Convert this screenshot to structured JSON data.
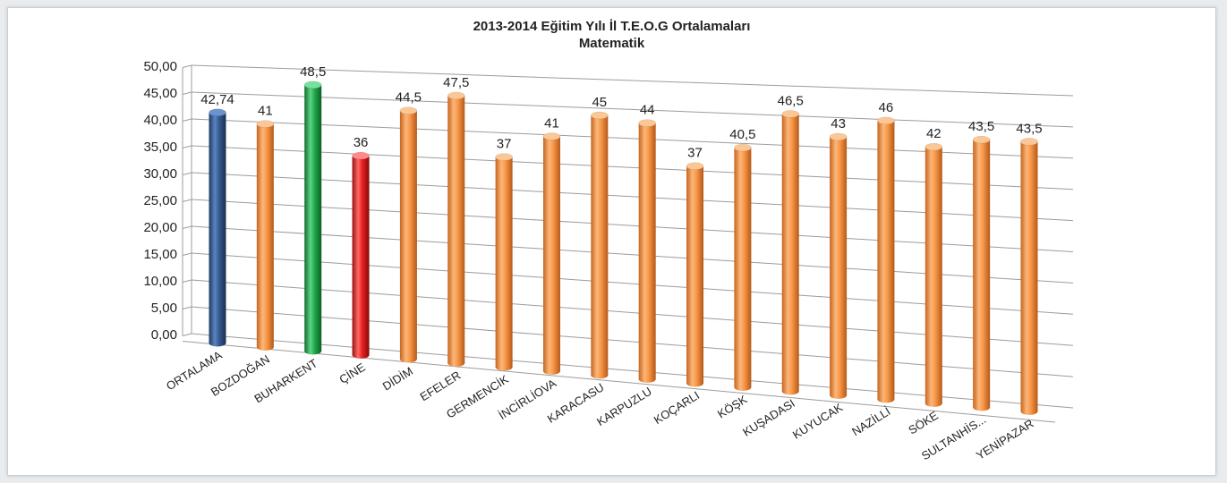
{
  "chart_data": {
    "type": "bar",
    "title": "2013-2014 Eğitim Yılı İl T.E.O.G Ortalamaları",
    "subtitle": "Matematik",
    "categories": [
      "ORTALAMA",
      "BOZDOĞAN",
      "BUHARKENT",
      "ÇİNE",
      "DİDİM",
      "EFELER",
      "GERMENCİK",
      "İNCİRLİOVA",
      "KARACASU",
      "KARPUZLU",
      "KOÇARLI",
      "KÖŞK",
      "KUŞADASI",
      "KUYUCAK",
      "NAZİLLİ",
      "SÖKE",
      "SULTANHİS...",
      "YENİPAZAR"
    ],
    "values": [
      42.74,
      41,
      48.5,
      36,
      44.5,
      47.5,
      37,
      41,
      45,
      44,
      37,
      40.5,
      46.5,
      43,
      46,
      42,
      43.5,
      43.5
    ],
    "data_labels": [
      "42,74",
      "41",
      "48,5",
      "36",
      "44,5",
      "47,5",
      "37",
      "41",
      "45",
      "44",
      "37",
      "40,5",
      "46,5",
      "43",
      "46",
      "42",
      "43,5",
      "43,5"
    ],
    "y_ticks": [
      "0,00",
      "5,00",
      "10,00",
      "15,00",
      "20,00",
      "25,00",
      "30,00",
      "35,00",
      "40,00",
      "45,00",
      "50,00"
    ],
    "ylim": [
      0,
      50
    ],
    "grid": true,
    "legend": "none",
    "bar_colors": {
      "default": "#f79646",
      "ORTALAMA": "#34598f",
      "BUHARKENT": "#1fa84a",
      "ÇİNE": "#e81d1d"
    }
  }
}
